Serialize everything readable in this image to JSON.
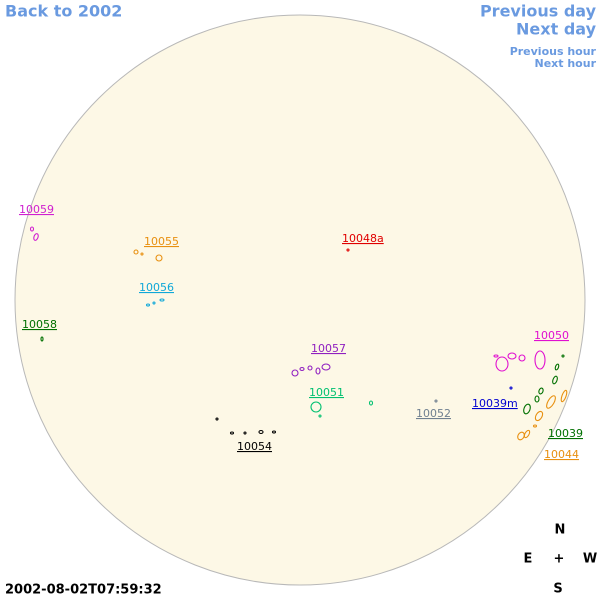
{
  "nav": {
    "back": "Back to 2002",
    "prev_day": "Previous day",
    "next_day": "Next day",
    "prev_hour": "Previous hour",
    "next_hour": "Next hour"
  },
  "regions": [
    {
      "label": "10059",
      "color": "#d020d0"
    },
    {
      "label": "10055",
      "color": "#e89010"
    },
    {
      "label": "10048a",
      "color": "#e00000"
    },
    {
      "label": "10056",
      "color": "#10a8d8"
    },
    {
      "label": "10058",
      "color": "#007000"
    },
    {
      "label": "10057",
      "color": "#9020c0"
    },
    {
      "label": "10050",
      "color": "#e010d0"
    },
    {
      "label": "10051",
      "color": "#00c070"
    },
    {
      "label": "10052",
      "color": "#708090"
    },
    {
      "label": "10039m",
      "color": "#0000d0"
    },
    {
      "label": "10054",
      "color": "#000000"
    },
    {
      "label": "10039",
      "color": "#007000"
    },
    {
      "label": "10044",
      "color": "#e89010"
    }
  ],
  "timestamp": "2002-08-02T07:59:32",
  "compass": {
    "n": "N",
    "e": "E",
    "center": "+",
    "w": "W",
    "s": "S"
  }
}
